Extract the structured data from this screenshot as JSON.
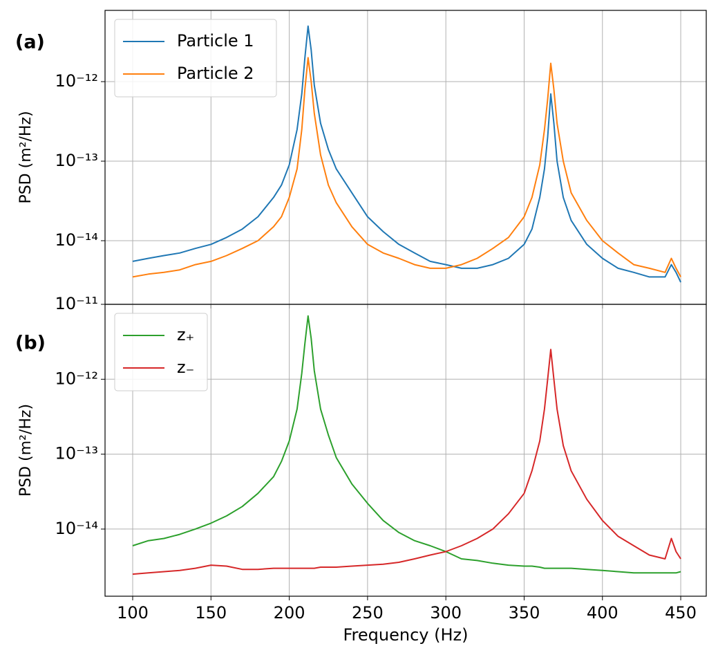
{
  "chart_data": [
    {
      "type": "line",
      "panel_label": "(a)",
      "ylabel": "PSD (m²/Hz)",
      "log_y": true,
      "grid": true,
      "legend": "upper left",
      "show_xtick_labels": false,
      "xlim": [
        82.35,
        466.3
      ],
      "xticks": [
        100,
        150,
        200,
        250,
        300,
        350,
        400,
        450
      ],
      "ylim": [
        1.585e-15,
        7.87e-12
      ],
      "yticks": [
        {
          "value": 1e-12,
          "label": "10⁻¹²"
        },
        {
          "value": 1e-13,
          "label": "10⁻¹³"
        },
        {
          "value": 1e-14,
          "label": "10⁻¹⁴"
        }
      ],
      "x": [
        100,
        110,
        120,
        130,
        140,
        150,
        160,
        170,
        180,
        190,
        195,
        200,
        205,
        208,
        210,
        212,
        214,
        216,
        220,
        225,
        230,
        240,
        250,
        260,
        270,
        280,
        290,
        300,
        310,
        320,
        330,
        340,
        350,
        355,
        360,
        363,
        365,
        367,
        369,
        371,
        375,
        380,
        390,
        400,
        410,
        420,
        430,
        440,
        444,
        447,
        450
      ],
      "series": [
        {
          "name": "Particle 1",
          "color": "#1f77b4",
          "values": [
            5.5e-15,
            6e-15,
            6.5e-15,
            7e-15,
            8e-15,
            9e-15,
            1.1e-14,
            1.4e-14,
            2e-14,
            3.5e-14,
            5e-14,
            9e-14,
            2.5e-13,
            7e-13,
            2e-12,
            5e-12,
            2.5e-12,
            9e-13,
            3e-13,
            1.4e-13,
            8e-14,
            4e-14,
            2e-14,
            1.3e-14,
            9e-15,
            7e-15,
            5.5e-15,
            5e-15,
            4.5e-15,
            4.5e-15,
            5e-15,
            6e-15,
            9e-15,
            1.4e-14,
            3.5e-14,
            8e-14,
            2e-13,
            7e-13,
            3e-13,
            1e-13,
            3.5e-14,
            1.8e-14,
            9e-15,
            6e-15,
            4.5e-15,
            4e-15,
            3.5e-15,
            3.5e-15,
            5e-15,
            4e-15,
            3e-15
          ]
        },
        {
          "name": "Particle 2",
          "color": "#ff7f0e",
          "values": [
            3.5e-15,
            3.8e-15,
            4e-15,
            4.3e-15,
            5e-15,
            5.5e-15,
            6.5e-15,
            8e-15,
            1e-14,
            1.5e-14,
            2e-14,
            3.5e-14,
            8e-14,
            2.5e-13,
            8e-13,
            2e-12,
            1e-12,
            4e-13,
            1.2e-13,
            5e-14,
            3e-14,
            1.5e-14,
            9e-15,
            7e-15,
            6e-15,
            5e-15,
            4.5e-15,
            4.5e-15,
            5e-15,
            6e-15,
            8e-15,
            1.1e-14,
            2e-14,
            3.5e-14,
            9e-14,
            2.5e-13,
            6e-13,
            1.7e-12,
            8e-13,
            3e-13,
            1e-13,
            4e-14,
            1.8e-14,
            1e-14,
            7e-15,
            5e-15,
            4.5e-15,
            4e-15,
            6e-15,
            4.5e-15,
            3.5e-15
          ]
        }
      ]
    },
    {
      "type": "line",
      "panel_label": "(b)",
      "ylabel": "PSD (m²/Hz)",
      "xlabel": "Frequency (Hz)",
      "log_y": true,
      "grid": true,
      "legend": "upper left",
      "show_xtick_labels": true,
      "xlim": [
        82.35,
        466.3
      ],
      "xticks": [
        100,
        150,
        200,
        250,
        300,
        350,
        400,
        450
      ],
      "ylim": [
        1.27e-15,
        1e-11
      ],
      "yticks": [
        {
          "value": 1e-11,
          "label": "10⁻¹¹"
        },
        {
          "value": 1e-12,
          "label": "10⁻¹²"
        },
        {
          "value": 1e-13,
          "label": "10⁻¹³"
        },
        {
          "value": 1e-14,
          "label": "10⁻¹⁴"
        }
      ],
      "x": [
        100,
        110,
        120,
        130,
        140,
        150,
        160,
        170,
        180,
        190,
        195,
        200,
        205,
        208,
        210,
        212,
        214,
        216,
        220,
        225,
        230,
        240,
        250,
        260,
        270,
        280,
        290,
        300,
        310,
        320,
        330,
        340,
        350,
        355,
        360,
        363,
        365,
        367,
        369,
        371,
        375,
        380,
        390,
        400,
        410,
        420,
        430,
        440,
        444,
        447,
        450
      ],
      "series": [
        {
          "name": "z₊",
          "color": "#2ca02c",
          "values": [
            6e-15,
            7e-15,
            7.5e-15,
            8.5e-15,
            1e-14,
            1.2e-14,
            1.5e-14,
            2e-14,
            3e-14,
            5e-14,
            8e-14,
            1.5e-13,
            4e-13,
            1.2e-12,
            3e-12,
            7e-12,
            3.5e-12,
            1.3e-12,
            4e-13,
            1.8e-13,
            9e-14,
            4e-14,
            2.2e-14,
            1.3e-14,
            9e-15,
            7e-15,
            6e-15,
            5e-15,
            4e-15,
            3.8e-15,
            3.5e-15,
            3.3e-15,
            3.2e-15,
            3.2e-15,
            3.1e-15,
            3e-15,
            3e-15,
            3e-15,
            3e-15,
            3e-15,
            3e-15,
            3e-15,
            2.9e-15,
            2.8e-15,
            2.7e-15,
            2.6e-15,
            2.6e-15,
            2.6e-15,
            2.6e-15,
            2.6e-15,
            2.7e-15
          ]
        },
        {
          "name": "z₋",
          "color": "#d62728",
          "values": [
            2.5e-15,
            2.6e-15,
            2.7e-15,
            2.8e-15,
            3e-15,
            3.3e-15,
            3.2e-15,
            2.9e-15,
            2.9e-15,
            3e-15,
            3e-15,
            3e-15,
            3e-15,
            3e-15,
            3e-15,
            3e-15,
            3e-15,
            3e-15,
            3.1e-15,
            3.1e-15,
            3.1e-15,
            3.2e-15,
            3.3e-15,
            3.4e-15,
            3.6e-15,
            4e-15,
            4.5e-15,
            5e-15,
            6e-15,
            7.5e-15,
            1e-14,
            1.6e-14,
            3e-14,
            6e-14,
            1.5e-13,
            4e-13,
            1e-12,
            2.5e-12,
            1e-12,
            4e-13,
            1.3e-13,
            6e-14,
            2.5e-14,
            1.3e-14,
            8e-15,
            6e-15,
            4.5e-15,
            4e-15,
            7.5e-15,
            5e-15,
            4e-15
          ]
        }
      ]
    }
  ]
}
